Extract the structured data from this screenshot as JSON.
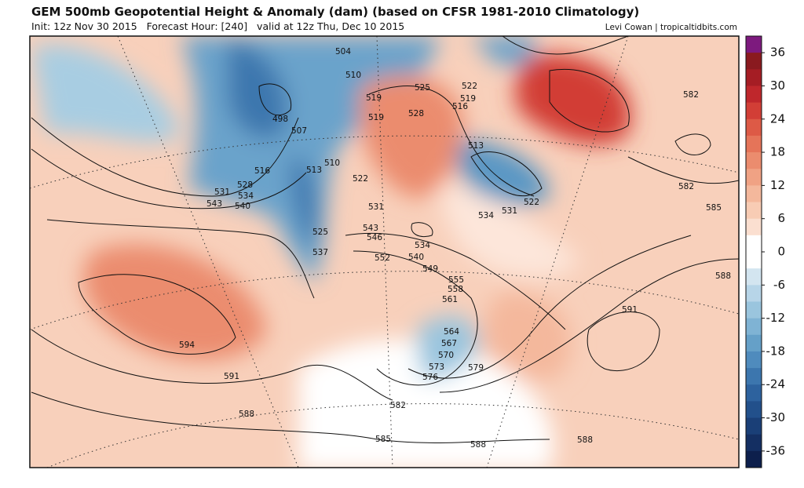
{
  "header": {
    "title": "GEM 500mb Geopotential Height & Anomaly (dam) (based on CFSR 1981-2010 Climatology)",
    "subtitle": "Init: 12z Nov 30 2015   Forecast Hour: [240]   valid at 12z Thu, Dec 10 2015",
    "credit": "Levi Cowan | tropicaltidbits.com"
  },
  "colorbar": {
    "range": [
      -39,
      39
    ],
    "ticks": [
      36,
      30,
      24,
      18,
      12,
      6,
      0,
      -6,
      -12,
      -18,
      -24,
      -30,
      -36
    ],
    "colors": [
      "#7d1a7e",
      "#8a1a1f",
      "#a51d24",
      "#bf272c",
      "#d23e36",
      "#dd5a46",
      "#e57459",
      "#eb8c6e",
      "#f0a284",
      "#f4b89c",
      "#f8ccb4",
      "#fbdfd0",
      "#ffffff",
      "#ffffff",
      "#d3e5f0",
      "#b7d5e8",
      "#9ac5de",
      "#7fb3d4",
      "#65a0c8",
      "#4f8bbd",
      "#3c76ae",
      "#2d629e",
      "#22508b",
      "#1a3f77",
      "#142f62",
      "#0d1f4c"
    ]
  },
  "contours": {
    "labels": [
      504,
      510,
      498,
      507,
      516,
      513,
      510,
      522,
      528,
      531,
      534,
      543,
      540,
      531,
      525,
      537,
      543,
      546,
      552,
      534,
      540,
      549,
      555,
      558,
      561,
      564,
      567,
      570,
      573,
      576,
      579,
      582,
      585,
      588,
      588,
      588,
      591,
      594,
      591,
      588,
      585,
      582,
      582,
      525,
      522,
      519,
      519,
      516,
      519,
      528,
      513,
      522,
      531,
      534
    ]
  }
}
